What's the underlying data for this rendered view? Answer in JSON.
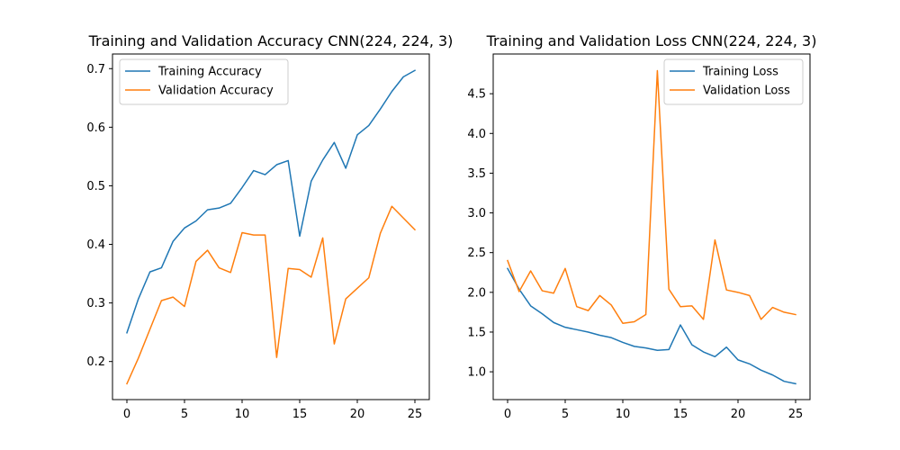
{
  "chart_data": [
    {
      "type": "line",
      "title": "Training and Validation Accuracy CNN(224, 224, 3)",
      "xlabel": "",
      "ylabel": "",
      "xlim": [
        -1.25,
        26.25
      ],
      "ylim": [
        0.135,
        0.725
      ],
      "xticks": [
        0,
        5,
        10,
        15,
        20,
        25
      ],
      "yticks": [
        0.2,
        0.3,
        0.4,
        0.5,
        0.6,
        0.7
      ],
      "ytick_labels": [
        "0.2",
        "0.3",
        "0.4",
        "0.5",
        "0.6",
        "0.7"
      ],
      "grid": false,
      "legend_position": "top-left",
      "series": [
        {
          "name": "Training Accuracy",
          "color": "#1f77b4",
          "x": [
            0,
            1,
            2,
            3,
            4,
            5,
            6,
            7,
            8,
            9,
            10,
            11,
            12,
            13,
            14,
            15,
            16,
            17,
            18,
            19,
            20,
            21,
            22,
            23,
            24,
            25
          ],
          "values": [
            0.249,
            0.307,
            0.353,
            0.36,
            0.405,
            0.428,
            0.44,
            0.459,
            0.462,
            0.47,
            0.497,
            0.526,
            0.519,
            0.536,
            0.543,
            0.414,
            0.508,
            0.544,
            0.574,
            0.53,
            0.587,
            0.603,
            0.631,
            0.661,
            0.686,
            0.697
          ]
        },
        {
          "name": "Validation Accuracy",
          "color": "#ff7f0e",
          "x": [
            0,
            1,
            2,
            3,
            4,
            5,
            6,
            7,
            8,
            9,
            10,
            11,
            12,
            13,
            14,
            15,
            16,
            17,
            18,
            19,
            20,
            21,
            22,
            23,
            24,
            25
          ],
          "values": [
            0.162,
            0.206,
            0.255,
            0.304,
            0.31,
            0.294,
            0.371,
            0.39,
            0.36,
            0.352,
            0.42,
            0.416,
            0.416,
            0.207,
            0.359,
            0.357,
            0.344,
            0.411,
            0.23,
            0.307,
            0.325,
            0.343,
            0.419,
            0.465,
            0.445,
            0.425
          ]
        }
      ]
    },
    {
      "type": "line",
      "title": "Training and Validation Loss CNN(224, 224, 3)",
      "xlabel": "",
      "ylabel": "",
      "xlim": [
        -1.25,
        26.25
      ],
      "ylim": [
        0.65,
        5.0
      ],
      "xticks": [
        0,
        5,
        10,
        15,
        20,
        25
      ],
      "yticks": [
        1.0,
        1.5,
        2.0,
        2.5,
        3.0,
        3.5,
        4.0,
        4.5
      ],
      "ytick_labels": [
        "1.0",
        "1.5",
        "2.0",
        "2.5",
        "3.0",
        "3.5",
        "4.0",
        "4.5"
      ],
      "grid": false,
      "legend_position": "top-right",
      "series": [
        {
          "name": "Training Loss",
          "color": "#1f77b4",
          "x": [
            0,
            1,
            2,
            3,
            4,
            5,
            6,
            7,
            8,
            9,
            10,
            11,
            12,
            13,
            14,
            15,
            16,
            17,
            18,
            19,
            20,
            21,
            22,
            23,
            24,
            25
          ],
          "values": [
            2.3,
            2.04,
            1.83,
            1.73,
            1.62,
            1.56,
            1.53,
            1.5,
            1.46,
            1.43,
            1.37,
            1.32,
            1.3,
            1.27,
            1.28,
            1.59,
            1.34,
            1.25,
            1.19,
            1.31,
            1.15,
            1.1,
            1.02,
            0.96,
            0.88,
            0.85
          ]
        },
        {
          "name": "Validation Loss",
          "color": "#ff7f0e",
          "x": [
            0,
            1,
            2,
            3,
            4,
            5,
            6,
            7,
            8,
            9,
            10,
            11,
            12,
            13,
            14,
            15,
            16,
            17,
            18,
            19,
            20,
            21,
            22,
            23,
            24,
            25
          ],
          "values": [
            2.4,
            2.01,
            2.27,
            2.02,
            1.99,
            2.3,
            1.82,
            1.77,
            1.96,
            1.84,
            1.61,
            1.63,
            1.72,
            4.79,
            2.04,
            1.82,
            1.83,
            1.66,
            2.66,
            2.03,
            2.0,
            1.96,
            1.66,
            1.81,
            1.75,
            1.72
          ]
        }
      ]
    }
  ]
}
